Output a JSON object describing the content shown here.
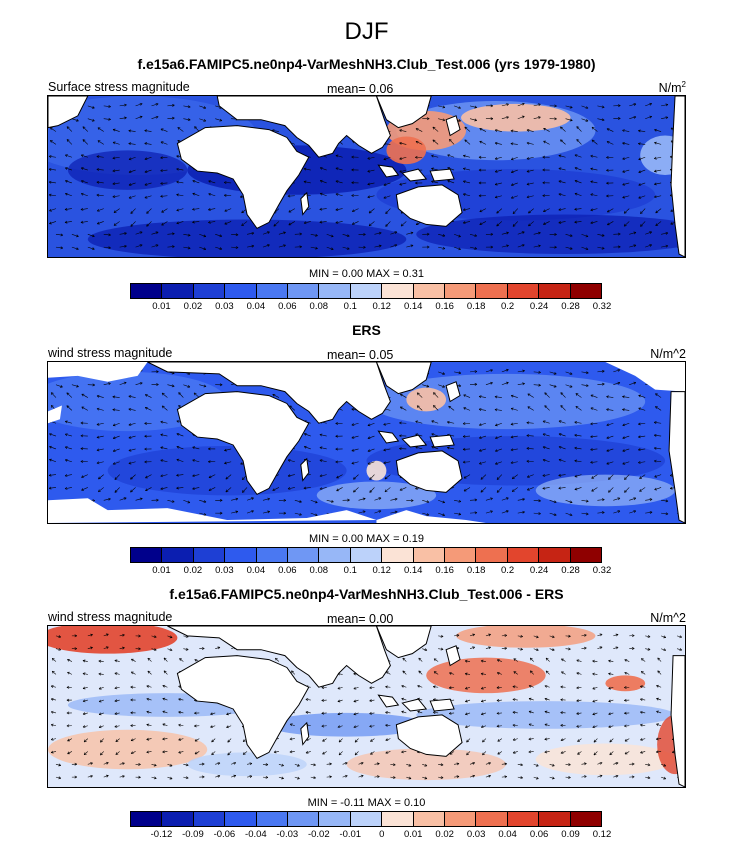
{
  "title": "DJF",
  "colors": {
    "cmap": [
      "#00008b",
      "#0b1eb0",
      "#1e3fd4",
      "#2e5aee",
      "#4a78f2",
      "#6f97f4",
      "#97b7f7",
      "#bcd2fa",
      "#fbe3d6",
      "#f9c0a5",
      "#f59a78",
      "#ee7050",
      "#e2452d",
      "#c62414",
      "#8f0000"
    ],
    "land": "#ffffff",
    "coast": "#000000"
  },
  "panels": [
    {
      "title": "f.e15a6.FAMIPC5.ne0np4-VarMeshNH3.Club_Test.006 (yrs 1979-1980)",
      "left_label": "Surface stress magnitude",
      "mean_text": "mean=   0.06",
      "units_main": "N/m",
      "units_sup": "2",
      "minmax": "MIN =   0.00 MAX =   0.31",
      "ticks": [
        "0.01",
        "0.02",
        "0.03",
        "0.04",
        "0.06",
        "0.08",
        "0.1",
        "0.12",
        "0.14",
        "0.16",
        "0.18",
        "0.2",
        "0.24",
        "0.28",
        "0.32"
      ]
    },
    {
      "title": "ERS",
      "left_label": "wind stress magnitude",
      "mean_text": "mean=   0.05",
      "units_main": "N/m^2",
      "units_sup": "",
      "minmax": "MIN =   0.00 MAX =   0.19",
      "ticks": [
        "0.01",
        "0.02",
        "0.03",
        "0.04",
        "0.06",
        "0.08",
        "0.1",
        "0.12",
        "0.14",
        "0.16",
        "0.18",
        "0.2",
        "0.24",
        "0.28",
        "0.32"
      ]
    },
    {
      "title": "f.e15a6.FAMIPC5.ne0np4-VarMeshNH3.Club_Test.006 - ERS",
      "left_label": "wind stress magnitude",
      "mean_text": "mean=   0.00",
      "units_main": "N/m^2",
      "units_sup": "",
      "minmax": "MIN =  -0.11 MAX =   0.10",
      "ticks": [
        "-0.12",
        "-0.09",
        "-0.06",
        "-0.04",
        "-0.03",
        "-0.02",
        "-0.01",
        "0",
        "0.01",
        "0.02",
        "0.03",
        "0.04",
        "0.06",
        "0.09",
        "0.12"
      ]
    }
  ]
}
